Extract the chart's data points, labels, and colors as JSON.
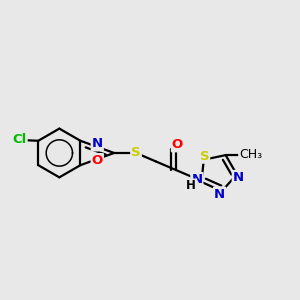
{
  "bg_color": "#e8e8e8",
  "atom_colors": {
    "C": "#000000",
    "H": "#000000",
    "N": "#0000cc",
    "O": "#ff0000",
    "S": "#cccc00",
    "Cl": "#00bb00"
  },
  "bond_color": "#000000",
  "bond_lw": 1.6,
  "font_size": 9.5,
  "xlim": [
    0.0,
    1.0
  ],
  "ylim": [
    0.2,
    0.85
  ]
}
